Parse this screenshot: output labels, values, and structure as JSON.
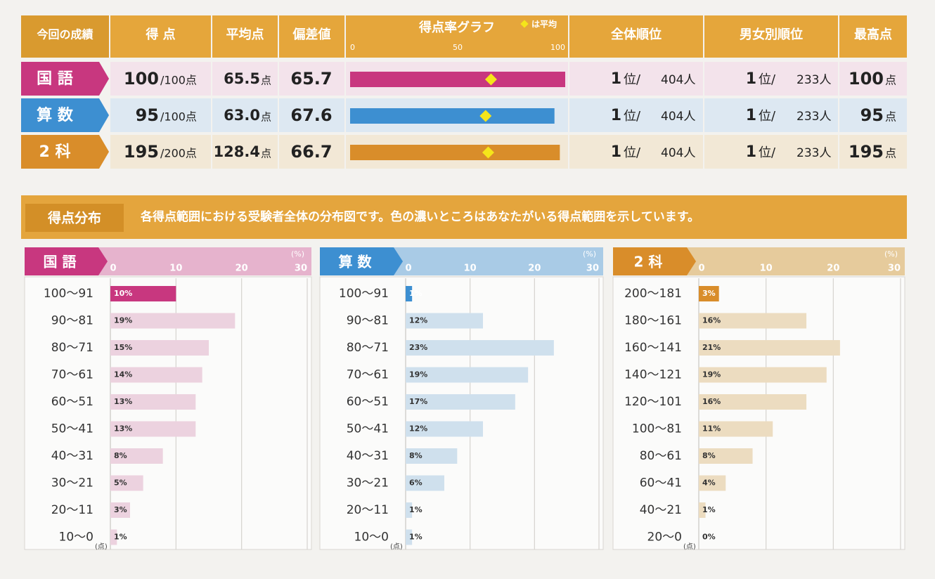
{
  "results": {
    "headers": {
      "label": "今回の成績",
      "score": "得 点",
      "avg": "平均点",
      "dev": "偏差値",
      "graph": "得点率グラフ",
      "overall": "全体順位",
      "gender": "男女別順位",
      "max": "最高点"
    },
    "graph_legend": "は平均",
    "graph_lim": [
      0,
      100
    ],
    "graph_ticks": [
      0,
      50,
      100
    ],
    "rank_suffix": "位/",
    "unit": "点",
    "rows": [
      {
        "subject": "国 語",
        "color": "#c8377f",
        "bg": "#f3e3eb",
        "score": "100",
        "full": "/100点",
        "avg": "65.5",
        "dev": "65.7",
        "rate": 100,
        "avg_rate": 65.5,
        "overall_rank": "1",
        "overall_count": "404人",
        "gender_rank": "1",
        "gender_count": "233人",
        "max": "100"
      },
      {
        "subject": "算 数",
        "color": "#3d8fd1",
        "bg": "#dde8f2",
        "score": "95",
        "full": "/100点",
        "avg": "63.0",
        "dev": "67.6",
        "rate": 95,
        "avg_rate": 63,
        "overall_rank": "1",
        "overall_count": "404人",
        "gender_rank": "1",
        "gender_count": "233人",
        "max": "95"
      },
      {
        "subject": "2 科",
        "color": "#d98d2a",
        "bg": "#f2e8d6",
        "score": "195",
        "full": "/200点",
        "avg": "128.4",
        "dev": "66.7",
        "rate": 97.5,
        "avg_rate": 64.2,
        "overall_rank": "1",
        "overall_count": "404人",
        "gender_rank": "1",
        "gender_count": "233人",
        "max": "195"
      }
    ]
  },
  "distribution": {
    "title": "得点分布",
    "description": "各得点範囲における受験者全体の分布図です。色の濃いところはあなたがいる得点範囲を示しています。",
    "panels": [
      {
        "subject": "国 語",
        "color": "#c8377f",
        "light": "#ecd2df",
        "header": "#e6b3cd",
        "unit": "(%)",
        "score_unit": "(点)",
        "xlim": [
          0,
          30
        ],
        "xticks": [
          0,
          10,
          20,
          30
        ],
        "highlight": 0,
        "categories": [
          "100～91",
          "90～81",
          "80～71",
          "70～61",
          "60～51",
          "50～41",
          "40～31",
          "30～21",
          "20～11",
          "10～0"
        ],
        "values": [
          10,
          19,
          15,
          14,
          13,
          13,
          8,
          5,
          3,
          1
        ],
        "value_labels": [
          "10%",
          "19%",
          "15%",
          "14%",
          "13%",
          "13%",
          "8%",
          "5%",
          "3%",
          "1%"
        ]
      },
      {
        "subject": "算 数",
        "color": "#3d8fd1",
        "light": "#cfe0ed",
        "header": "#a9cbe6",
        "unit": "(%)",
        "score_unit": "(点)",
        "xlim": [
          0,
          30
        ],
        "xticks": [
          0,
          10,
          20,
          30
        ],
        "highlight": 0,
        "categories": [
          "100～91",
          "90～81",
          "80～71",
          "70～61",
          "60～51",
          "50～41",
          "40～31",
          "30～21",
          "20～11",
          "10～0"
        ],
        "values": [
          1,
          12,
          23,
          19,
          17,
          12,
          8,
          6,
          1,
          1
        ],
        "value_labels": [
          "1%",
          "12%",
          "23%",
          "19%",
          "17%",
          "12%",
          "8%",
          "6%",
          "1%",
          "1%"
        ]
      },
      {
        "subject": "2 科",
        "color": "#d98d2a",
        "light": "#ecdcc0",
        "header": "#e6cb9c",
        "unit": "(%)",
        "score_unit": "(点)",
        "xlim": [
          0,
          30
        ],
        "xticks": [
          0,
          10,
          20,
          30
        ],
        "highlight": 0,
        "categories": [
          "200～181",
          "180～161",
          "160～141",
          "140～121",
          "120～101",
          "100～81",
          "80～61",
          "60～41",
          "40～21",
          "20～0"
        ],
        "values": [
          3,
          16,
          21,
          19,
          16,
          11,
          8,
          4,
          1,
          0
        ],
        "value_labels": [
          "3%",
          "16%",
          "21%",
          "19%",
          "16%",
          "11%",
          "8%",
          "4%",
          "1%",
          "0%"
        ]
      }
    ]
  }
}
